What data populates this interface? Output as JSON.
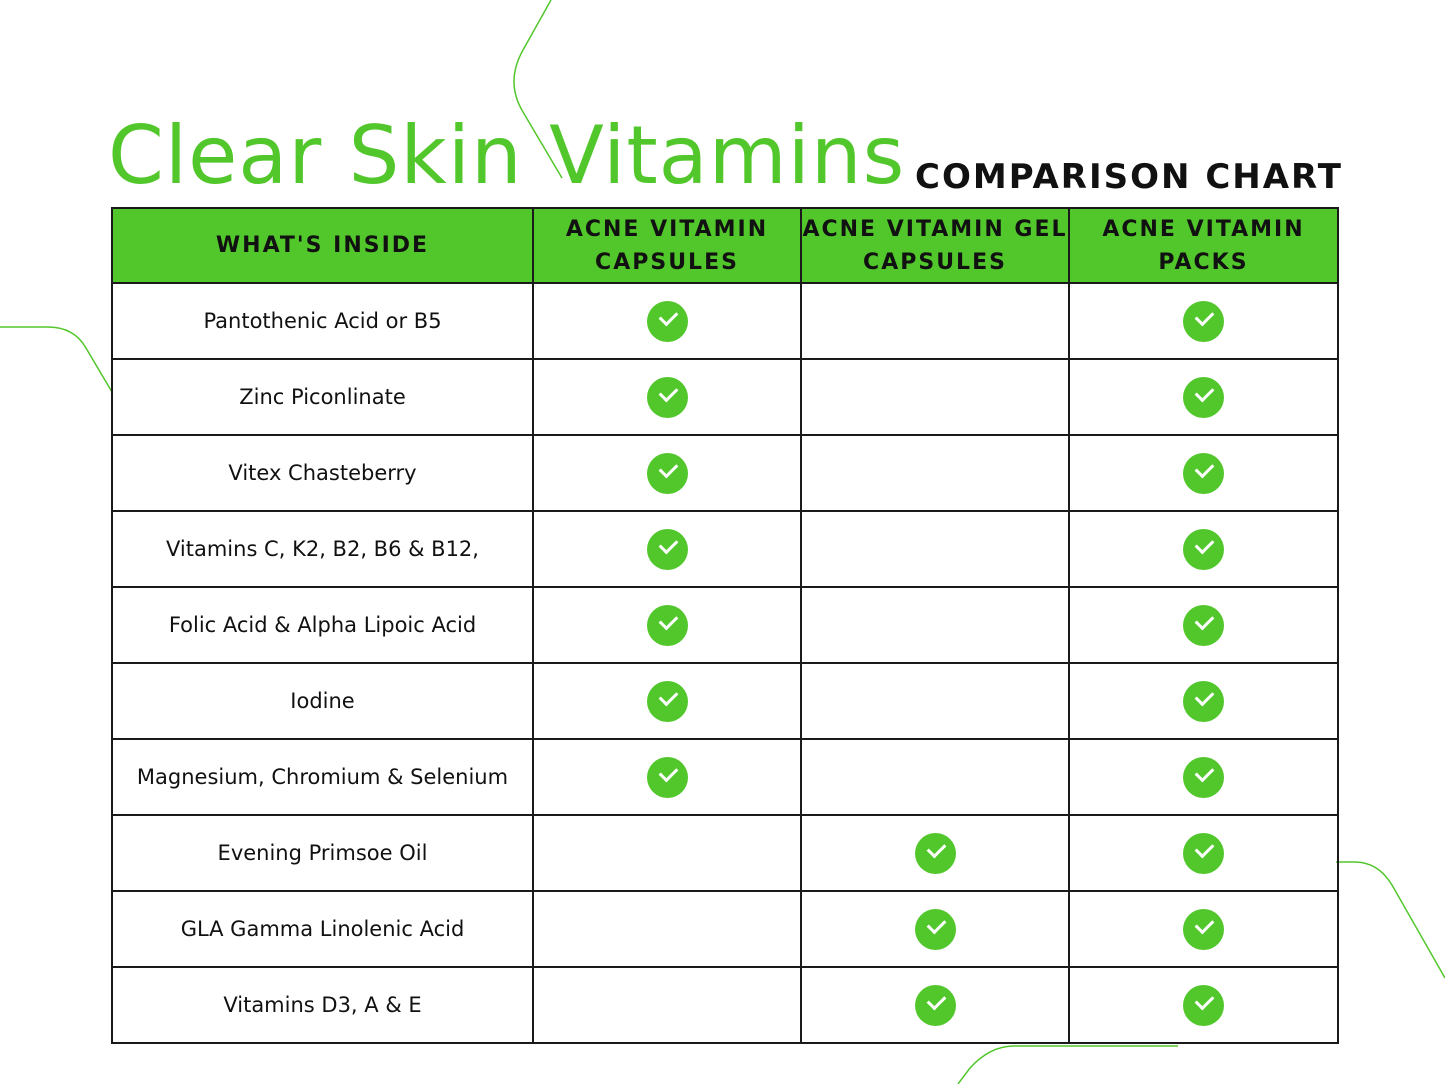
{
  "colors": {
    "accent": "#52c72b",
    "text": "#111111",
    "border": "#1a1a1a",
    "background": "#ffffff"
  },
  "title": {
    "main": "Clear Skin Vitamins",
    "sub": "COMPARISON CHART"
  },
  "table": {
    "headers": [
      "WHAT'S INSIDE",
      "ACNE VITAMIN CAPSULES",
      "ACNE VITAMIN GEL CAPSULES",
      "ACNE VITAMIN PACKS"
    ],
    "icon": "check-circle-icon",
    "rows": [
      {
        "ingredient": "Pantothenic Acid or B5",
        "capsules": true,
        "gel_capsules": false,
        "packs": true
      },
      {
        "ingredient": "Zinc Piconlinate",
        "capsules": true,
        "gel_capsules": false,
        "packs": true
      },
      {
        "ingredient": "Vitex Chasteberry",
        "capsules": true,
        "gel_capsules": false,
        "packs": true
      },
      {
        "ingredient": "Vitamins C, K2, B2, B6 & B12,",
        "capsules": true,
        "gel_capsules": false,
        "packs": true
      },
      {
        "ingredient": "Folic Acid & Alpha Lipoic Acid",
        "capsules": true,
        "gel_capsules": false,
        "packs": true
      },
      {
        "ingredient": "Iodine",
        "capsules": true,
        "gel_capsules": false,
        "packs": true
      },
      {
        "ingredient": "Magnesium, Chromium & Selenium",
        "capsules": true,
        "gel_capsules": false,
        "packs": true
      },
      {
        "ingredient": "Evening Primsoe Oil",
        "capsules": false,
        "gel_capsules": true,
        "packs": true
      },
      {
        "ingredient": "GLA Gamma Linolenic Acid",
        "capsules": false,
        "gel_capsules": true,
        "packs": true
      },
      {
        "ingredient": "Vitamins D3, A & E",
        "capsules": false,
        "gel_capsules": true,
        "packs": true
      }
    ]
  }
}
